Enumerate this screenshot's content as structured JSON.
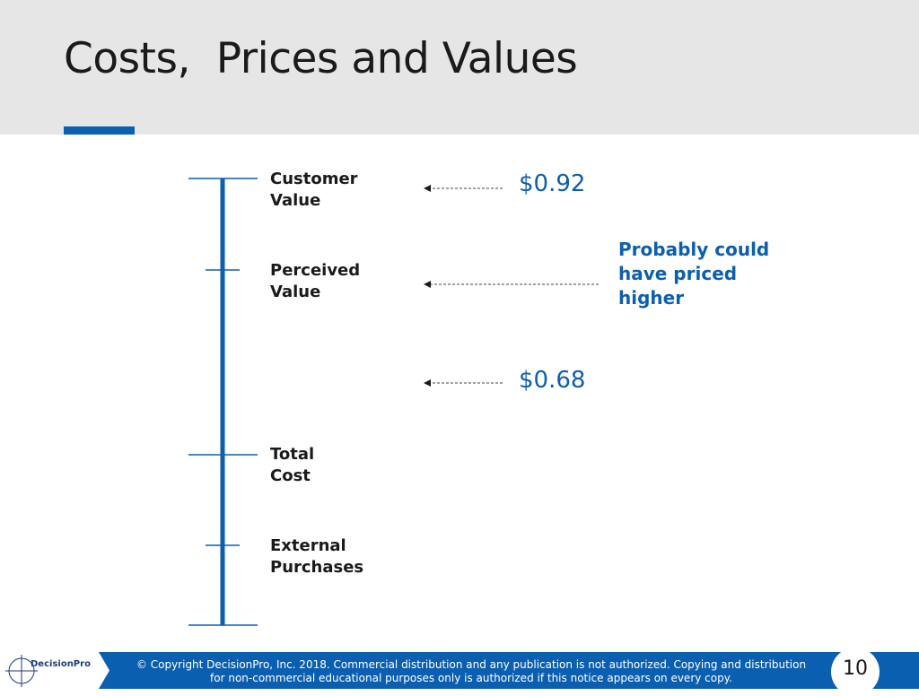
{
  "slide": {
    "title": "Costs,  Prices and Values",
    "page_number": "10"
  },
  "scale": {
    "labels": [
      {
        "line1": "Customer",
        "line2": "Value"
      },
      {
        "line1": "Perceived",
        "line2": "Value"
      },
      {
        "line1": "Total",
        "line2": "Cost"
      },
      {
        "line1": "External",
        "line2": "Purchases"
      }
    ]
  },
  "prices": {
    "upper": "$0.92",
    "lower": "$0.68"
  },
  "note": {
    "line1": "Probably could",
    "line2": "have priced",
    "line3": "higher"
  },
  "footer": {
    "logo_text": "DecisionPro",
    "copyright_line1": "© Copyright DecisionPro, Inc.  2018. Commercial distribution and any publication is not authorized. Copying and distribution",
    "copyright_line2": "for non-commercial educational purposes only is authorized if this notice appears on every copy."
  },
  "colors": {
    "accent": "#0b5fb0",
    "header_band": "#e6e6e6",
    "text": "#1a1a1a"
  }
}
